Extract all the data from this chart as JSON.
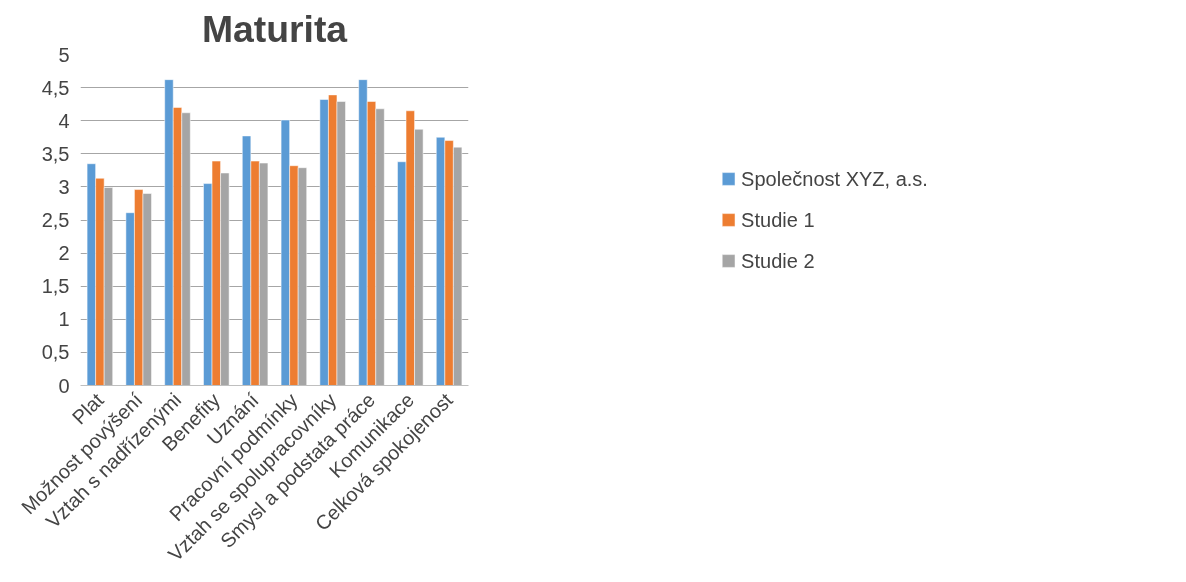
{
  "chart_data": {
    "type": "bar",
    "title": "Maturita",
    "categories": [
      "Plat",
      "Možnost povýšení",
      "Vztah s nadřízenými",
      "Benefity",
      "Uznání",
      "Pracovní podmínky",
      "Vztah se spolupracovníky",
      "Smysl a podstata práce",
      "Komunikace",
      "Celková spokojenost"
    ],
    "series": [
      {
        "name": "Společnost XYZ, a.s.",
        "color": "#5b9bd5",
        "values": [
          3.35,
          2.61,
          4.62,
          3.05,
          3.77,
          4.01,
          4.32,
          4.62,
          3.38,
          3.75
        ]
      },
      {
        "name": "Studie 1",
        "color": "#ed7d31",
        "values": [
          3.13,
          2.96,
          4.2,
          3.39,
          3.39,
          3.32,
          4.39,
          4.29,
          4.15,
          3.7
        ]
      },
      {
        "name": "Studie 2",
        "color": "#a5a5a5",
        "values": [
          2.99,
          2.9,
          4.12,
          3.21,
          3.36,
          3.29,
          4.29,
          4.18,
          3.87,
          3.6
        ]
      }
    ],
    "ylim": [
      0,
      5
    ],
    "yticks": [
      0,
      {
        "value": 0.5,
        "label": "0,5"
      },
      1,
      {
        "value": 1.5,
        "label": "1,5"
      },
      2,
      {
        "value": 2.5,
        "label": "2,5"
      },
      3,
      {
        "value": 3.5,
        "label": "3,5"
      },
      4,
      {
        "value": 4.5,
        "label": "4,5"
      },
      5
    ],
    "grid": "y",
    "legend": "right"
  }
}
